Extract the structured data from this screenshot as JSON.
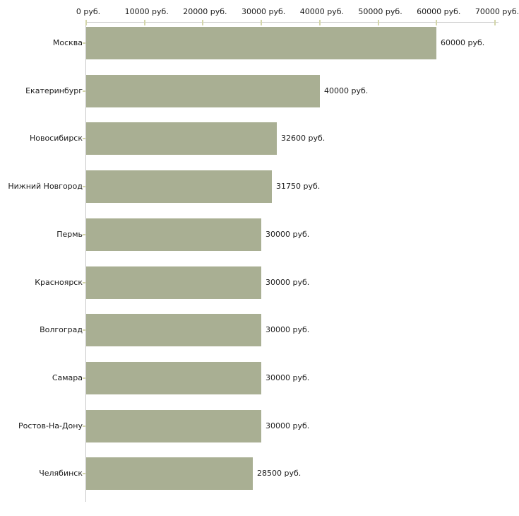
{
  "chart_data": {
    "type": "bar",
    "orientation": "horizontal",
    "title": "",
    "xlabel": "",
    "ylabel": "",
    "unit": "руб.",
    "categories": [
      "Москва",
      "Екатеринбург",
      "Новосибирск",
      "Нижний Новгород",
      "Пермь",
      "Красноярск",
      "Волгоград",
      "Самара",
      "Ростов-На-Дону",
      "Челябинск"
    ],
    "values": [
      60000,
      40000,
      32600,
      31750,
      30000,
      30000,
      30000,
      30000,
      30000,
      28500
    ],
    "value_labels": [
      "60000 руб.",
      "40000 руб.",
      "32600 руб.",
      "31750 руб.",
      "30000 руб.",
      "30000 руб.",
      "30000 руб.",
      "30000 руб.",
      "30000 руб.",
      "28500 руб."
    ],
    "x_tick_labels": [
      "0 руб.",
      "10000 руб.",
      "20000 руб.",
      "30000 руб.",
      "40000 руб.",
      "50000 руб.",
      "60000 руб.",
      "70000 руб."
    ],
    "xlim": [
      0,
      70000
    ],
    "grid": false,
    "legend": false,
    "colors": {
      "bar": "#a9af93",
      "axis_line": "#c8c8c8",
      "tick_mark": "#d4d6aa",
      "text": "#1b1b1b",
      "background": "#ffffff"
    }
  }
}
